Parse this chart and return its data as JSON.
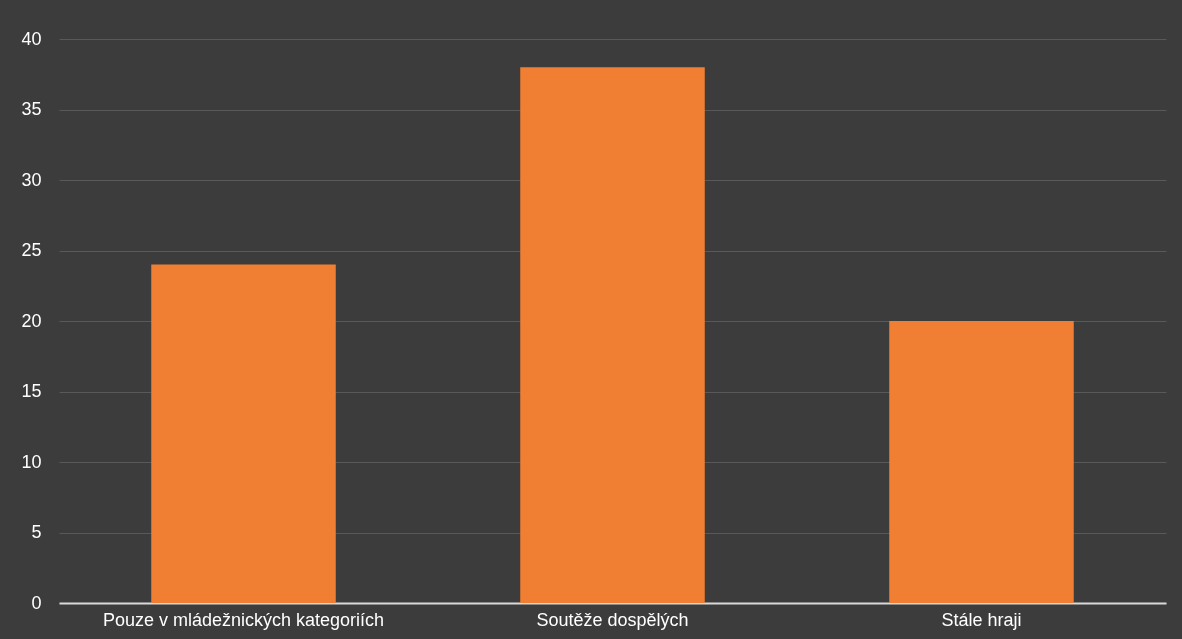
{
  "chart_data": {
    "type": "bar",
    "categories": [
      "Pouze v mládežnických kategoriích",
      "Soutěže dospělých",
      "Stále hraji"
    ],
    "values": [
      24,
      38,
      20
    ],
    "color": "#f07f33",
    "ylim": [
      0,
      40
    ],
    "yticks": [
      0,
      5,
      10,
      15,
      20,
      25,
      30,
      35,
      40
    ],
    "grid": "y"
  }
}
